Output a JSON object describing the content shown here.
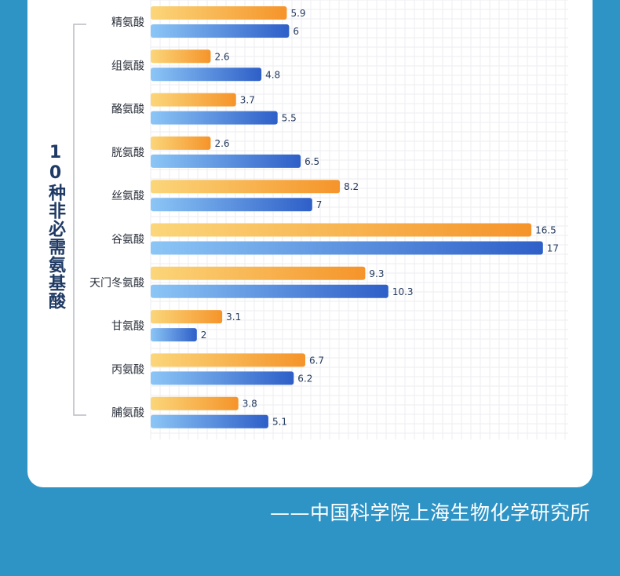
{
  "chart_data": {
    "type": "bar",
    "orientation": "horizontal",
    "categories": [
      "精氨酸",
      "组氨酸",
      "酪氨酸",
      "胱氨酸",
      "丝氨酸",
      "谷氨酸",
      "天门冬氨酸",
      "甘氨酸",
      "丙氨酸",
      "脯氨酸"
    ],
    "series": [
      {
        "values": [
          5.9,
          2.6,
          3.7,
          2.6,
          8.2,
          16.5,
          9.3,
          3.1,
          6.7,
          3.8
        ],
        "color_start": "#fbd67a",
        "color_end": "#f5942a"
      },
      {
        "values": [
          6,
          4.8,
          5.5,
          6.5,
          7,
          17,
          10.3,
          2,
          6.2,
          5.1
        ],
        "color_start": "#8cc6f6",
        "color_end": "#2e5fc8"
      }
    ],
    "xlim": [
      0,
      18
    ],
    "grid": true,
    "group_label": "10种非必需氨基酸"
  },
  "footer": {
    "source": "——中国科学院上海生物化学研究所"
  }
}
